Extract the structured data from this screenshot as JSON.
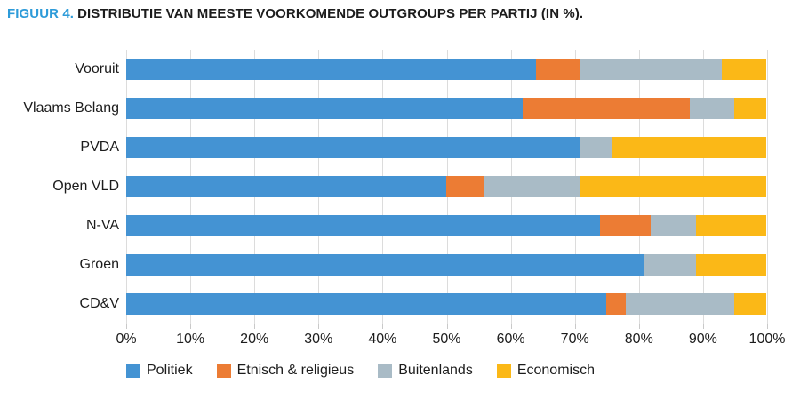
{
  "title": {
    "prefix": "FIGUUR 4.",
    "text": "DISTRIBUTIE VAN MEESTE VOORKOMENDE OUTGROUPS PER PARTIJ (IN %)."
  },
  "colors": {
    "title_accent": "#2d9bd9",
    "text": "#1c1c1c",
    "gridline": "#dcdcdc",
    "tick": "#c9c9c9",
    "politiek": "#4493d3",
    "etnisch_religieus": "#ec7c34",
    "buitenlands": "#a9bbc6",
    "economisch": "#fbb817"
  },
  "chart_data": {
    "type": "bar",
    "orientation": "horizontal-stacked",
    "title": "FIGUUR 4. DISTRIBUTIE VAN MEESTE VOORKOMENDE OUTGROUPS PER PARTIJ (IN %).",
    "categories": [
      "Vooruit",
      "Vlaams Belang",
      "PVDA",
      "Open VLD",
      "N-VA",
      "Groen",
      "CD&V"
    ],
    "series": [
      {
        "name": "Politiek",
        "color": "#4493d3",
        "values": [
          64,
          62,
          71,
          50,
          74,
          81,
          75
        ]
      },
      {
        "name": "Etnisch & religieus",
        "color": "#ec7c34",
        "values": [
          7,
          26,
          0,
          6,
          8,
          0,
          3
        ]
      },
      {
        "name": "Buitenlands",
        "color": "#a9bbc6",
        "values": [
          22,
          7,
          5,
          15,
          7,
          8,
          17
        ]
      },
      {
        "name": "Economisch",
        "color": "#fbb817",
        "values": [
          7,
          5,
          24,
          29,
          11,
          11,
          5
        ]
      }
    ],
    "x_ticks": [
      "0%",
      "10%",
      "20%",
      "30%",
      "40%",
      "50%",
      "60%",
      "70%",
      "80%",
      "90%",
      "100%"
    ],
    "xlim": [
      0,
      100
    ],
    "xlabel": "",
    "ylabel": "",
    "grid": true,
    "legend_position": "bottom"
  }
}
